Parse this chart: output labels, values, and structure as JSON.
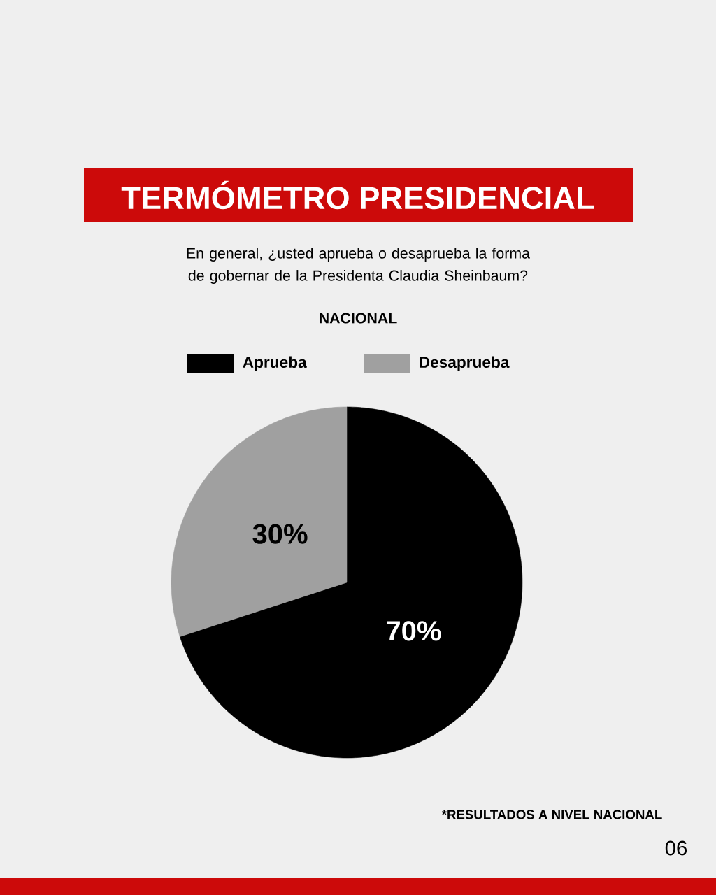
{
  "chart_data": {
    "type": "pie",
    "title": "TERMÓMETRO PRESIDENCIAL",
    "subtitle": "En general, ¿usted aprueba o desaprueba la forma de gobernar de la Presidenta Claudia Sheinbaum?",
    "categories": [
      "Aprueba",
      "Desaprueba"
    ],
    "values": [
      70,
      30
    ],
    "colors": [
      "#000000",
      "#a0a0a0"
    ],
    "value_labels": [
      "70%",
      "30%"
    ],
    "legend": "top",
    "annotations": [
      "NACIONAL",
      "*RESULTADOS A NIVEL NACIONAL",
      "06"
    ]
  }
}
